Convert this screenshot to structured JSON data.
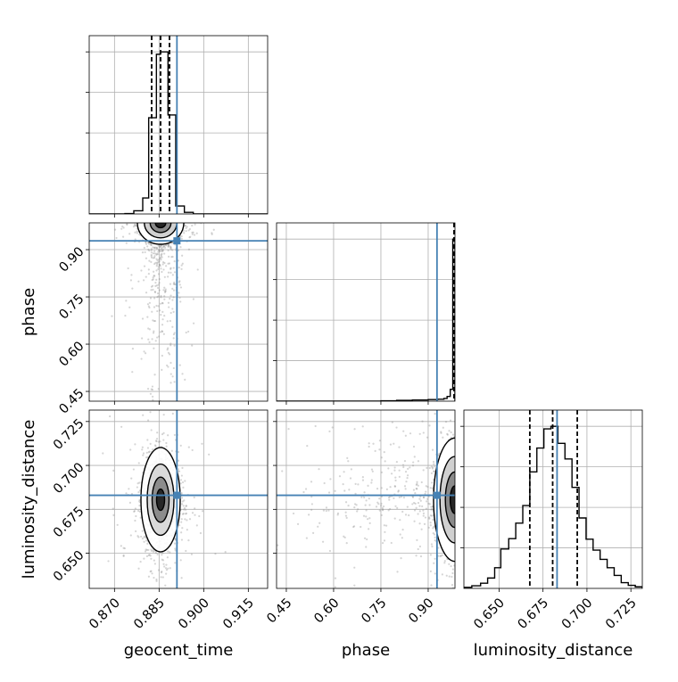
{
  "chart_data": {
    "type": "corner",
    "parameters": [
      "geocent_time",
      "phase",
      "luminosity_distance"
    ],
    "truths": {
      "geocent_time": 0.891,
      "phase": 0.928,
      "luminosity_distance": 0.683
    },
    "colors": {
      "truth": "#4682b4",
      "hist": "#000000",
      "grid": "#b0b0b0",
      "scatter": "#888888",
      "frame": "#000000"
    },
    "grid": true,
    "axes": {
      "geocent_time": {
        "range": [
          0.8615,
          0.9215
        ],
        "ticks": [
          "0.870",
          "0.885",
          "0.900",
          "0.915"
        ],
        "tick_values": [
          0.87,
          0.885,
          0.9,
          0.915
        ]
      },
      "phase": {
        "range": [
          0.419,
          0.985
        ],
        "ticks": [
          "0.45",
          "0.60",
          "0.75",
          "0.90"
        ],
        "tick_values": [
          0.45,
          0.6,
          0.75,
          0.9
        ]
      },
      "luminosity_distance": {
        "range": [
          0.63,
          0.7315
        ],
        "ticks": [
          "0.650",
          "0.675",
          "0.700",
          "0.725"
        ],
        "tick_values": [
          0.65,
          0.675,
          0.7,
          0.725
        ]
      }
    },
    "marginals": {
      "geocent_time": {
        "quantiles": [
          0.8825,
          0.8855,
          0.8885
        ],
        "bins": [
          0.8615,
          0.8645,
          0.8675,
          0.8705,
          0.8735,
          0.8765,
          0.8795,
          0.8815,
          0.8828,
          0.8841,
          0.8854,
          0.8867,
          0.888,
          0.8893,
          0.8906,
          0.8935,
          0.8965,
          0.8995,
          0.9215
        ],
        "counts": [
          0,
          0,
          0,
          0,
          1,
          8,
          40,
          241,
          241,
          400,
          406,
          406,
          248,
          248,
          20,
          4,
          0,
          0
        ]
      },
      "phase": {
        "quantiles": [
          0.982,
          0.983,
          0.984
        ],
        "bins": [
          0.419,
          0.75,
          0.8,
          0.85,
          0.9,
          0.93,
          0.95,
          0.96,
          0.97,
          0.978,
          0.985
        ],
        "counts": [
          0,
          1,
          2,
          3,
          4,
          5,
          7,
          12,
          30,
          410
        ]
      },
      "luminosity_distance": {
        "quantiles": [
          0.6675,
          0.6805,
          0.6945
        ],
        "bins": [
          0.63,
          0.6345,
          0.6395,
          0.6435,
          0.6475,
          0.651,
          0.6555,
          0.6595,
          0.6635,
          0.6675,
          0.6715,
          0.6755,
          0.6795,
          0.6835,
          0.6875,
          0.6915,
          0.6955,
          0.6995,
          0.7035,
          0.7075,
          0.7115,
          0.7155,
          0.7195,
          0.7235,
          0.7275,
          0.7315
        ],
        "counts": [
          2,
          5,
          10,
          20,
          40,
          76,
          96,
          126,
          160,
          225,
          271,
          308,
          313,
          280,
          250,
          195,
          136,
          95,
          74,
          56,
          40,
          25,
          11,
          6,
          3
        ]
      }
    }
  },
  "labels": {
    "x_geocent_time": "geocent_time",
    "x_phase": "phase",
    "x_luminosity_distance": "luminosity_distance",
    "y_phase": "phase",
    "y_luminosity_distance": "luminosity_distance"
  }
}
